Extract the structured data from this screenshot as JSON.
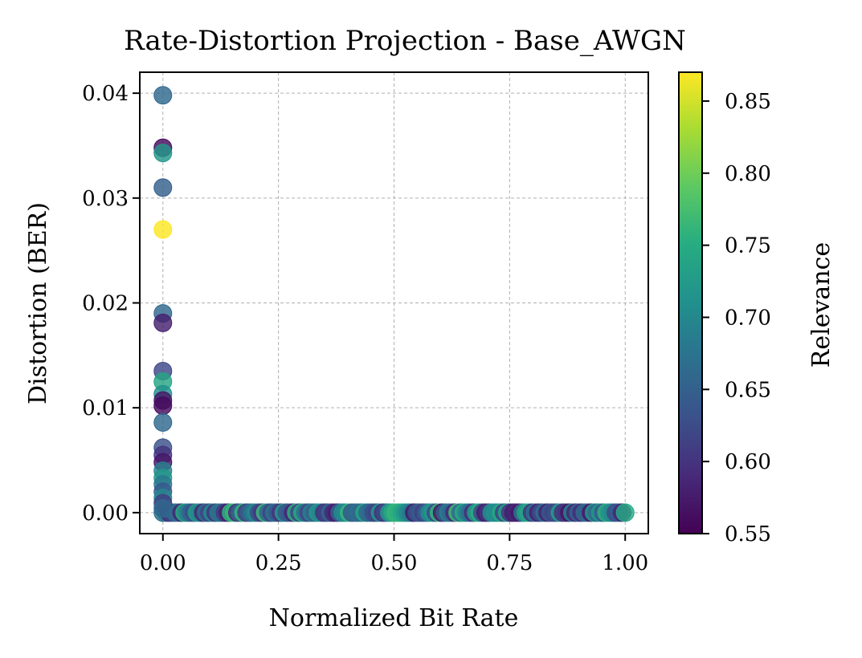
{
  "chart_data": {
    "type": "scatter",
    "title": "Rate-Distortion Projection - Base_AWGN",
    "xlabel": "Normalized Bit Rate",
    "ylabel": "Distortion (BER)",
    "xlim": [
      -0.05,
      1.05
    ],
    "ylim": [
      -0.002,
      0.042
    ],
    "xticks": [
      0.0,
      0.25,
      0.5,
      0.75,
      1.0
    ],
    "xtick_labels": [
      "0.00",
      "0.25",
      "0.50",
      "0.75",
      "1.00"
    ],
    "yticks": [
      0.0,
      0.01,
      0.02,
      0.03,
      0.04
    ],
    "ytick_labels": [
      "0.00",
      "0.01",
      "0.02",
      "0.03",
      "0.04"
    ],
    "grid": true,
    "colormap": "viridis",
    "colorbar": {
      "label": "Relevance",
      "range": [
        0.55,
        0.87
      ],
      "ticks": [
        0.55,
        0.6,
        0.65,
        0.7,
        0.75,
        0.8,
        0.85
      ],
      "tick_labels": [
        "0.55",
        "0.60",
        "0.65",
        "0.70",
        "0.75",
        "0.80",
        "0.85"
      ]
    },
    "points_x0": [
      {
        "y": 0.0398,
        "c": 0.66
      },
      {
        "y": 0.0348,
        "c": 0.56
      },
      {
        "y": 0.0343,
        "c": 0.72
      },
      {
        "y": 0.031,
        "c": 0.65
      },
      {
        "y": 0.027,
        "c": 0.87
      },
      {
        "y": 0.019,
        "c": 0.66
      },
      {
        "y": 0.0181,
        "c": 0.58
      },
      {
        "y": 0.0135,
        "c": 0.62
      },
      {
        "y": 0.0125,
        "c": 0.74
      },
      {
        "y": 0.0113,
        "c": 0.71
      },
      {
        "y": 0.0107,
        "c": 0.57
      },
      {
        "y": 0.0102,
        "c": 0.56
      },
      {
        "y": 0.0086,
        "c": 0.66
      },
      {
        "y": 0.0062,
        "c": 0.63
      },
      {
        "y": 0.0055,
        "c": 0.6
      },
      {
        "y": 0.0048,
        "c": 0.57
      },
      {
        "y": 0.004,
        "c": 0.69
      },
      {
        "y": 0.0033,
        "c": 0.72
      },
      {
        "y": 0.0027,
        "c": 0.68
      },
      {
        "y": 0.002,
        "c": 0.64
      },
      {
        "y": 0.0014,
        "c": 0.7
      },
      {
        "y": 0.0009,
        "c": 0.61
      },
      {
        "y": 0.0004,
        "c": 0.66
      }
    ],
    "baseline": {
      "y": 0.0,
      "x_start": 0.0,
      "x_end": 1.0,
      "count": 150
    }
  }
}
